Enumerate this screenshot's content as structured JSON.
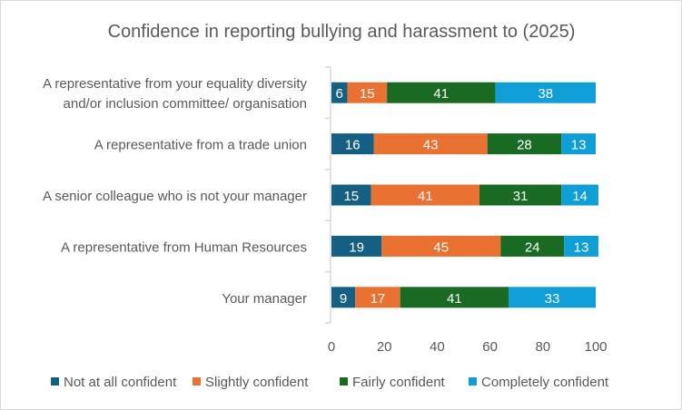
{
  "chart_data": {
    "type": "bar",
    "orientation": "horizontal",
    "stacked": true,
    "title": "Confidence in reporting bullying and harassment to (2025)",
    "categories": [
      [
        "A representative from your equality diversity",
        "and/or inclusion committee/ organisation"
      ],
      [
        "A representative from a trade union"
      ],
      [
        "A senior colleague who is not your manager"
      ],
      [
        "A representative from Human Resources"
      ],
      [
        "Your manager"
      ]
    ],
    "series": [
      {
        "name": "Not at all confident",
        "color": "#156082",
        "values": [
          6,
          16,
          15,
          19,
          9
        ]
      },
      {
        "name": "Slightly confident",
        "color": "#E97132",
        "values": [
          15,
          43,
          41,
          45,
          17
        ]
      },
      {
        "name": "Fairly confident",
        "color": "#196B24",
        "values": [
          41,
          28,
          31,
          24,
          41
        ]
      },
      {
        "name": "Completely confident",
        "color": "#0F9ED5",
        "values": [
          38,
          13,
          14,
          13,
          33
        ]
      }
    ],
    "xlim": [
      0,
      100
    ],
    "xticks": [
      0,
      20,
      40,
      60,
      80,
      100
    ],
    "grid": false,
    "data_labels": true,
    "legend": "bottom"
  }
}
